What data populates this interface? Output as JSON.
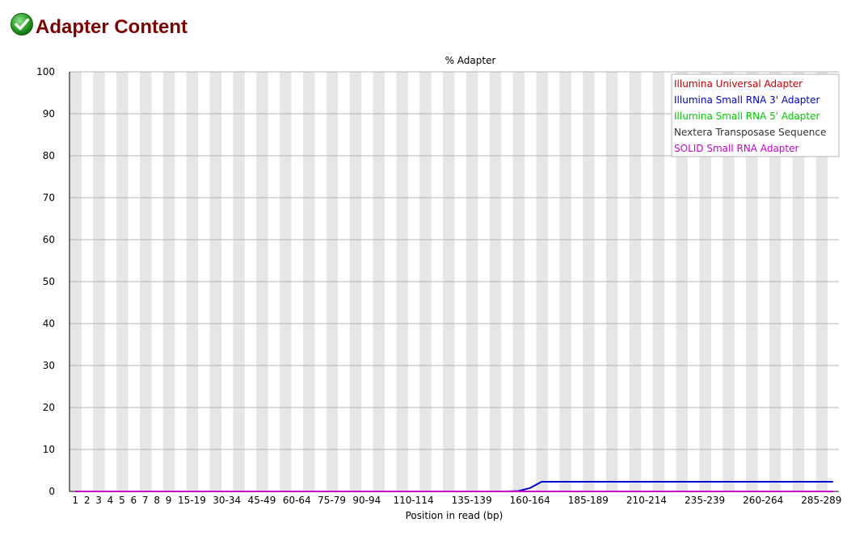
{
  "header": {
    "title": "Adapter Content",
    "status_icon": "check-icon",
    "status_color": "#22a022"
  },
  "chart_data": {
    "type": "line",
    "title": "% Adapter",
    "xlabel": "Position in read (bp)",
    "ylabel": "",
    "ylim": [
      0,
      100
    ],
    "yticks": [
      0,
      10,
      20,
      30,
      40,
      50,
      60,
      70,
      80,
      90,
      100
    ],
    "grid": true,
    "legend_position": "top-right",
    "categories": [
      "1",
      "2",
      "3",
      "4",
      "5",
      "6",
      "7",
      "8",
      "9",
      "10-14",
      "15-19",
      "20-24",
      "25-29",
      "30-34",
      "35-39",
      "40-44",
      "45-49",
      "50-54",
      "55-59",
      "60-64",
      "65-69",
      "70-74",
      "75-79",
      "80-84",
      "85-89",
      "90-94",
      "95-99",
      "100-104",
      "105-109",
      "110-114",
      "115-119",
      "120-124",
      "125-129",
      "130-134",
      "135-139",
      "140-144",
      "145-149",
      "150-154",
      "155-159",
      "160-164",
      "165-169",
      "170-174",
      "175-179",
      "180-184",
      "185-189",
      "190-194",
      "195-199",
      "200-204",
      "205-209",
      "210-214",
      "215-219",
      "220-224",
      "225-229",
      "230-234",
      "235-239",
      "240-244",
      "245-249",
      "250-254",
      "255-259",
      "260-264",
      "265-269",
      "270-274",
      "275-279",
      "280-284",
      "285-289",
      "290-294"
    ],
    "tick_labels": [
      "1",
      "2",
      "3",
      "4",
      "5",
      "6",
      "7",
      "8",
      "9",
      "15-19",
      "30-34",
      "45-49",
      "60-64",
      "75-79",
      "90-94",
      "110-114",
      "135-139",
      "160-164",
      "185-189",
      "210-214",
      "235-239",
      "260-264",
      "285-289"
    ],
    "series": [
      {
        "name": "Illumina Universal Adapter",
        "color": "#cc0000",
        "values": [
          0,
          0,
          0,
          0,
          0,
          0,
          0,
          0,
          0,
          0,
          0,
          0,
          0,
          0,
          0,
          0,
          0,
          0,
          0,
          0,
          0,
          0,
          0,
          0,
          0,
          0,
          0,
          0,
          0,
          0,
          0,
          0,
          0,
          0,
          0,
          0,
          0,
          0,
          0,
          0,
          0,
          0,
          0,
          0,
          0,
          0,
          0,
          0,
          0,
          0,
          0,
          0,
          0,
          0,
          0,
          0,
          0,
          0,
          0,
          0,
          0,
          0,
          0,
          0,
          0,
          0
        ]
      },
      {
        "name": "Illumina Small RNA 3' Adapter",
        "color": "#0000cc",
        "values": [
          0,
          0,
          0,
          0,
          0,
          0,
          0,
          0,
          0,
          0,
          0,
          0,
          0,
          0,
          0,
          0,
          0,
          0,
          0,
          0,
          0,
          0,
          0,
          0,
          0,
          0,
          0,
          0,
          0,
          0,
          0,
          0,
          0,
          0,
          0,
          0,
          0,
          0,
          0.1,
          0.8,
          2.3,
          2.3,
          2.3,
          2.3,
          2.3,
          2.3,
          2.3,
          2.3,
          2.3,
          2.3,
          2.3,
          2.3,
          2.3,
          2.3,
          2.3,
          2.3,
          2.3,
          2.3,
          2.3,
          2.3,
          2.3,
          2.3,
          2.3,
          2.3,
          2.3,
          2.3
        ]
      },
      {
        "name": "Illumina Small RNA 5' Adapter",
        "color": "#00cc00",
        "values": [
          0,
          0,
          0,
          0,
          0,
          0,
          0,
          0,
          0,
          0,
          0,
          0,
          0,
          0,
          0,
          0,
          0,
          0,
          0,
          0,
          0,
          0,
          0,
          0,
          0,
          0,
          0,
          0,
          0,
          0,
          0,
          0,
          0,
          0,
          0,
          0,
          0,
          0,
          0,
          0,
          0,
          0,
          0,
          0,
          0,
          0,
          0,
          0,
          0,
          0,
          0,
          0,
          0,
          0,
          0,
          0,
          0,
          0,
          0,
          0,
          0,
          0,
          0,
          0,
          0,
          0
        ]
      },
      {
        "name": "Nextera Transposase Sequence",
        "color": "#333333",
        "values": [
          0,
          0,
          0,
          0,
          0,
          0,
          0,
          0,
          0,
          0,
          0,
          0,
          0,
          0,
          0,
          0,
          0,
          0,
          0,
          0,
          0,
          0,
          0,
          0,
          0,
          0,
          0,
          0,
          0,
          0,
          0,
          0,
          0,
          0,
          0,
          0,
          0,
          0,
          0,
          0,
          0,
          0,
          0,
          0,
          0,
          0,
          0,
          0,
          0,
          0,
          0,
          0,
          0,
          0,
          0,
          0,
          0,
          0,
          0,
          0,
          0,
          0,
          0,
          0,
          0,
          0
        ]
      },
      {
        "name": "SOLID Small RNA Adapter",
        "color": "#cc00cc",
        "values": [
          0,
          0,
          0,
          0,
          0,
          0,
          0,
          0,
          0,
          0,
          0,
          0,
          0,
          0,
          0,
          0,
          0,
          0,
          0,
          0,
          0,
          0,
          0,
          0,
          0,
          0,
          0,
          0,
          0,
          0,
          0,
          0,
          0,
          0,
          0,
          0,
          0,
          0,
          0,
          0,
          0,
          0,
          0,
          0,
          0,
          0,
          0,
          0,
          0,
          0,
          0,
          0,
          0,
          0,
          0,
          0,
          0,
          0,
          0,
          0,
          0,
          0,
          0,
          0,
          0,
          0
        ]
      }
    ]
  }
}
